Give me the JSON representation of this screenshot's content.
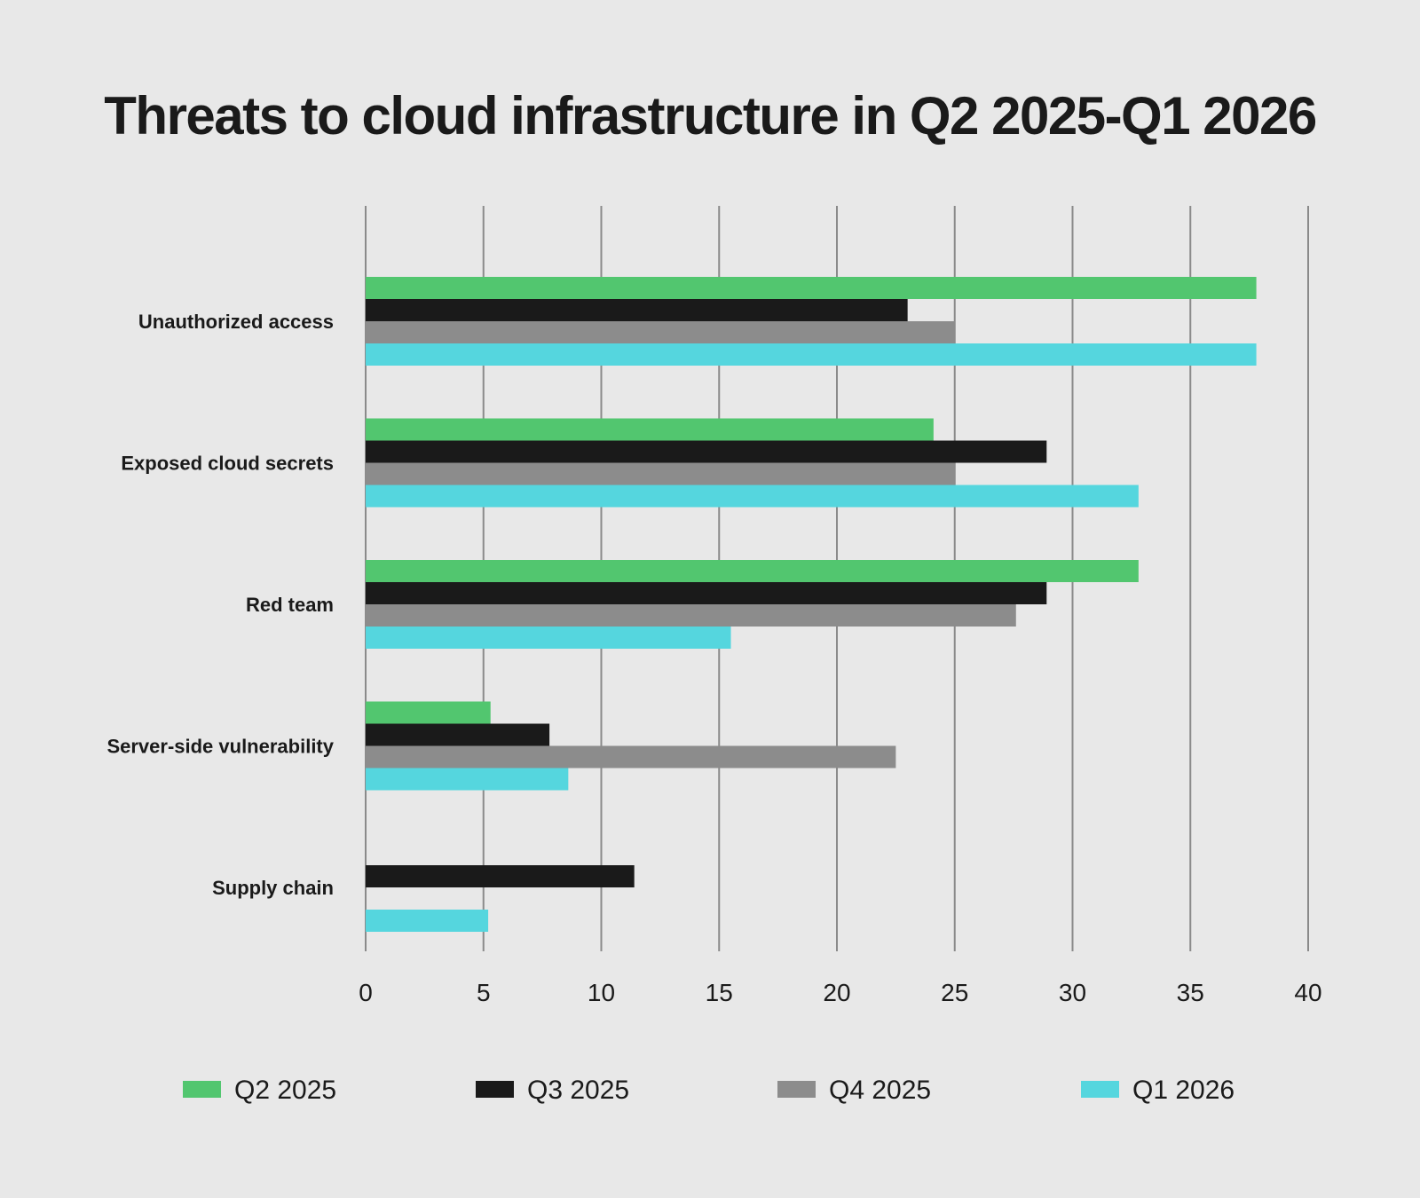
{
  "chart_data": {
    "type": "bar",
    "orientation": "horizontal",
    "title": "Threats to cloud infrastructure in Q2 2025-Q1 2026",
    "categories": [
      "Unauthorized access",
      "Exposed cloud secrets",
      "Red team",
      "Server-side vulnerability",
      "Supply chain"
    ],
    "series": [
      {
        "name": "Q2 2025",
        "color": "#52c66f",
        "values": [
          37.8,
          24.1,
          32.8,
          5.3,
          0
        ]
      },
      {
        "name": "Q3 2025",
        "color": "#1a1a1a",
        "values": [
          23.0,
          28.9,
          28.9,
          7.8,
          11.4
        ]
      },
      {
        "name": "Q4 2025",
        "color": "#8c8c8c",
        "values": [
          25.0,
          25.0,
          27.6,
          22.5,
          0
        ]
      },
      {
        "name": "Q1 2026",
        "color": "#55d6de",
        "values": [
          37.8,
          32.8,
          15.5,
          8.6,
          5.2
        ]
      }
    ],
    "xlim": [
      0,
      40
    ],
    "xticks": [
      "0",
      "5",
      "10",
      "15",
      "20",
      "25",
      "30",
      "35",
      "40"
    ],
    "xlabel": "",
    "ylabel": "",
    "grid": "vertical",
    "legend_position": "bottom"
  }
}
